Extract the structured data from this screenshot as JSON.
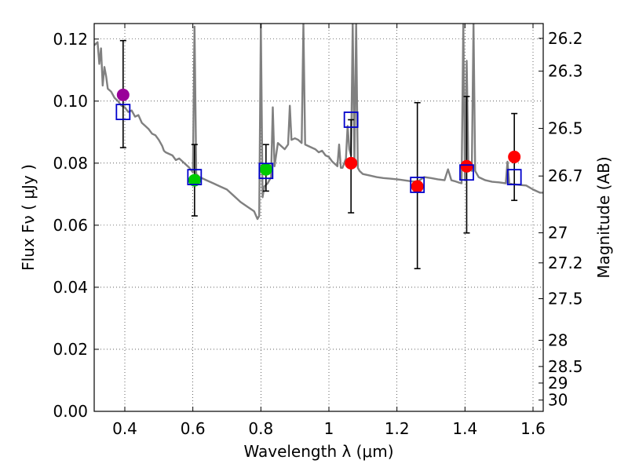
{
  "chart_data": {
    "type": "scatter",
    "xlabel": "Wavelength  λ (μm)",
    "ylabel_left": "Flux  Fν  ( μJy )",
    "ylabel_right": "Magnitude (AB)",
    "xlim": [
      0.31,
      1.63
    ],
    "ylim": [
      0.0,
      0.125
    ],
    "grid": true,
    "x_ticks": [
      {
        "value": 0.4,
        "label": "0.4"
      },
      {
        "value": 0.6,
        "label": "0.6"
      },
      {
        "value": 0.8,
        "label": "0.8"
      },
      {
        "value": 1.0,
        "label": "1"
      },
      {
        "value": 1.2,
        "label": "1.2"
      },
      {
        "value": 1.4,
        "label": "1.4"
      },
      {
        "value": 1.6,
        "label": "1.6"
      }
    ],
    "y_ticks": [
      {
        "value": 0.0,
        "label": "0.00"
      },
      {
        "value": 0.02,
        "label": "0.02"
      },
      {
        "value": 0.04,
        "label": "0.04"
      },
      {
        "value": 0.06,
        "label": "0.06"
      },
      {
        "value": 0.08,
        "label": "0.08"
      },
      {
        "value": 0.1,
        "label": "0.10"
      },
      {
        "value": 0.12,
        "label": "0.12"
      }
    ],
    "mag_ticks": [
      {
        "value": 26.2,
        "label": "26.2"
      },
      {
        "value": 26.3,
        "label": "26.3"
      },
      {
        "value": 26.5,
        "label": "26.5"
      },
      {
        "value": 26.7,
        "label": "26.7"
      },
      {
        "value": 27.0,
        "label": "27"
      },
      {
        "value": 27.2,
        "label": "27.2"
      },
      {
        "value": 27.5,
        "label": "27.5"
      },
      {
        "value": 28.0,
        "label": "28"
      },
      {
        "value": 28.5,
        "label": "28.5"
      },
      {
        "value": 29.0,
        "label": "29"
      },
      {
        "value": 30.0,
        "label": "30"
      }
    ],
    "observed": [
      {
        "x": 0.395,
        "y": 0.102,
        "err_low": 0.085,
        "err_high": 0.1195,
        "color": "#990099"
      },
      {
        "x": 0.605,
        "y": 0.0745,
        "err_low": 0.063,
        "err_high": 0.086,
        "color": "#00cc00"
      },
      {
        "x": 0.815,
        "y": 0.078,
        "err_low": 0.071,
        "err_high": 0.086,
        "color": "#00cc00"
      },
      {
        "x": 1.065,
        "y": 0.08,
        "err_low": 0.064,
        "err_high": 0.094,
        "color": "#ff0000"
      },
      {
        "x": 1.26,
        "y": 0.0725,
        "err_low": 0.046,
        "err_high": 0.0995,
        "color": "#ff0000"
      },
      {
        "x": 1.405,
        "y": 0.079,
        "err_low": 0.0575,
        "err_high": 0.1015,
        "color": "#ff0000"
      },
      {
        "x": 1.545,
        "y": 0.082,
        "err_low": 0.068,
        "err_high": 0.096,
        "color": "#ff0000"
      }
    ],
    "model_points": [
      {
        "x": 0.395,
        "y": 0.0965
      },
      {
        "x": 0.605,
        "y": 0.0755
      },
      {
        "x": 0.815,
        "y": 0.0775
      },
      {
        "x": 1.065,
        "y": 0.094
      },
      {
        "x": 1.26,
        "y": 0.073
      },
      {
        "x": 1.405,
        "y": 0.077
      },
      {
        "x": 1.545,
        "y": 0.0755
      }
    ],
    "model_color": "#0000cc",
    "sed_color": "#808080",
    "sed": [
      [
        0.31,
        0.118
      ],
      [
        0.32,
        0.119
      ],
      [
        0.325,
        0.112
      ],
      [
        0.33,
        0.117
      ],
      [
        0.335,
        0.105
      ],
      [
        0.34,
        0.111
      ],
      [
        0.345,
        0.108
      ],
      [
        0.35,
        0.104
      ],
      [
        0.36,
        0.103
      ],
      [
        0.37,
        0.101
      ],
      [
        0.38,
        0.1
      ],
      [
        0.39,
        0.0985
      ],
      [
        0.4,
        0.098
      ],
      [
        0.41,
        0.0965
      ],
      [
        0.42,
        0.097
      ],
      [
        0.43,
        0.095
      ],
      [
        0.44,
        0.0955
      ],
      [
        0.45,
        0.093
      ],
      [
        0.46,
        0.092
      ],
      [
        0.47,
        0.091
      ],
      [
        0.48,
        0.0895
      ],
      [
        0.49,
        0.089
      ],
      [
        0.5,
        0.0875
      ],
      [
        0.51,
        0.0855
      ],
      [
        0.515,
        0.084
      ],
      [
        0.52,
        0.0835
      ],
      [
        0.53,
        0.083
      ],
      [
        0.54,
        0.0825
      ],
      [
        0.55,
        0.081
      ],
      [
        0.56,
        0.0815
      ],
      [
        0.57,
        0.0805
      ],
      [
        0.58,
        0.0795
      ],
      [
        0.59,
        0.0785
      ],
      [
        0.6,
        0.077
      ],
      [
        0.605,
        0.124
      ],
      [
        0.61,
        0.0765
      ],
      [
        0.62,
        0.0755
      ],
      [
        0.64,
        0.0745
      ],
      [
        0.66,
        0.0735
      ],
      [
        0.68,
        0.0725
      ],
      [
        0.7,
        0.0715
      ],
      [
        0.72,
        0.0695
      ],
      [
        0.74,
        0.0675
      ],
      [
        0.76,
        0.066
      ],
      [
        0.78,
        0.0645
      ],
      [
        0.79,
        0.062
      ],
      [
        0.795,
        0.063
      ],
      [
        0.8,
        0.125
      ],
      [
        0.805,
        0.069
      ],
      [
        0.81,
        0.0725
      ],
      [
        0.82,
        0.0735
      ],
      [
        0.83,
        0.0755
      ],
      [
        0.835,
        0.098
      ],
      [
        0.84,
        0.079
      ],
      [
        0.85,
        0.0865
      ],
      [
        0.86,
        0.0855
      ],
      [
        0.87,
        0.0845
      ],
      [
        0.88,
        0.086
      ],
      [
        0.885,
        0.0985
      ],
      [
        0.89,
        0.0875
      ],
      [
        0.9,
        0.088
      ],
      [
        0.91,
        0.0875
      ],
      [
        0.92,
        0.0865
      ],
      [
        0.925,
        0.125
      ],
      [
        0.93,
        0.086
      ],
      [
        0.94,
        0.0855
      ],
      [
        0.95,
        0.085
      ],
      [
        0.96,
        0.0845
      ],
      [
        0.97,
        0.0835
      ],
      [
        0.98,
        0.084
      ],
      [
        0.99,
        0.0825
      ],
      [
        1.0,
        0.082
      ],
      [
        1.01,
        0.0805
      ],
      [
        1.02,
        0.0795
      ],
      [
        1.025,
        0.079
      ],
      [
        1.03,
        0.086
      ],
      [
        1.035,
        0.0785
      ],
      [
        1.04,
        0.0785
      ],
      [
        1.05,
        0.0815
      ],
      [
        1.055,
        0.092
      ],
      [
        1.06,
        0.0845
      ],
      [
        1.065,
        0.0825
      ],
      [
        1.07,
        0.125
      ],
      [
        1.075,
        0.0795
      ],
      [
        1.08,
        0.125
      ],
      [
        1.085,
        0.0785
      ],
      [
        1.09,
        0.0775
      ],
      [
        1.1,
        0.0765
      ],
      [
        1.12,
        0.076
      ],
      [
        1.14,
        0.0755
      ],
      [
        1.16,
        0.0752
      ],
      [
        1.18,
        0.075
      ],
      [
        1.2,
        0.0748
      ],
      [
        1.22,
        0.0745
      ],
      [
        1.24,
        0.0742
      ],
      [
        1.26,
        0.074
      ],
      [
        1.28,
        0.0755
      ],
      [
        1.3,
        0.0752
      ],
      [
        1.32,
        0.0748
      ],
      [
        1.34,
        0.0745
      ],
      [
        1.35,
        0.078
      ],
      [
        1.36,
        0.0745
      ],
      [
        1.37,
        0.0742
      ],
      [
        1.38,
        0.0738
      ],
      [
        1.39,
        0.0735
      ],
      [
        1.395,
        0.125
      ],
      [
        1.4,
        0.0745
      ],
      [
        1.405,
        0.113
      ],
      [
        1.41,
        0.079
      ],
      [
        1.42,
        0.0775
      ],
      [
        1.425,
        0.125
      ],
      [
        1.43,
        0.0775
      ],
      [
        1.44,
        0.0755
      ],
      [
        1.46,
        0.0745
      ],
      [
        1.48,
        0.074
      ],
      [
        1.5,
        0.0738
      ],
      [
        1.52,
        0.0735
      ],
      [
        1.525,
        0.0805
      ],
      [
        1.53,
        0.0735
      ],
      [
        1.54,
        0.0732
      ],
      [
        1.56,
        0.073
      ],
      [
        1.58,
        0.0728
      ],
      [
        1.6,
        0.0715
      ],
      [
        1.62,
        0.0705
      ],
      [
        1.63,
        0.0705
      ]
    ]
  }
}
